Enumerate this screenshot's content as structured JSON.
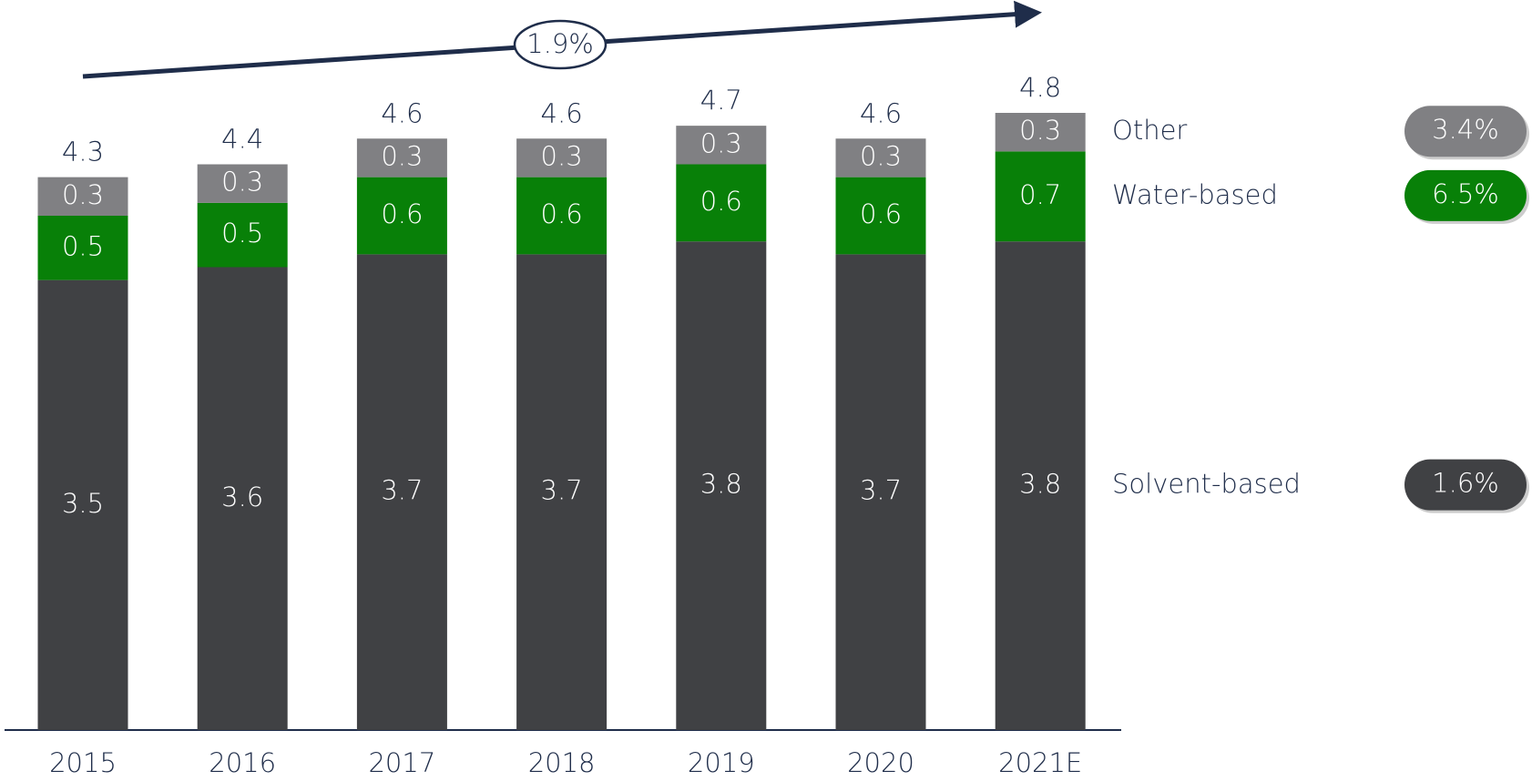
{
  "chart_data": {
    "type": "stacked_bar",
    "categories": [
      "2015",
      "2016",
      "2017",
      "2018",
      "2019",
      "2020",
      "2021E"
    ],
    "series": [
      {
        "name": "Solvent-based",
        "color": "#404144",
        "values": [
          3.5,
          3.6,
          3.7,
          3.7,
          3.8,
          3.7,
          3.8
        ],
        "cagr": "1.6%"
      },
      {
        "name": "Water-based",
        "color": "#088008",
        "values": [
          0.5,
          0.5,
          0.6,
          0.6,
          0.6,
          0.6,
          0.7
        ],
        "cagr": "6.5%"
      },
      {
        "name": "Other",
        "color": "#808083",
        "values": [
          0.3,
          0.3,
          0.3,
          0.3,
          0.3,
          0.3,
          0.3
        ],
        "cagr": "3.4%"
      }
    ],
    "totals": [
      4.3,
      4.4,
      4.6,
      4.6,
      4.7,
      4.6,
      4.8
    ],
    "cagr": "1.9%"
  }
}
